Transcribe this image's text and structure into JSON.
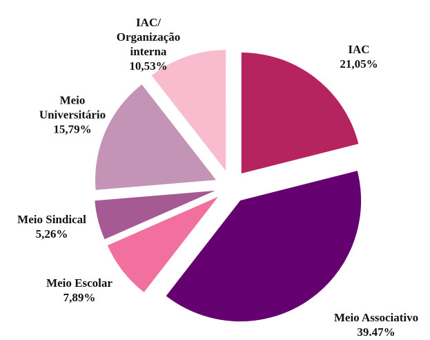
{
  "chart_data": {
    "type": "pie",
    "categories": [
      "IAC",
      "Meio Associativo",
      "Meio Escolar",
      "Meio Sindical",
      "Meio Universitário",
      "IAC/ Organização interna"
    ],
    "values": [
      21.05,
      39.47,
      7.89,
      5.26,
      15.79,
      10.53
    ],
    "value_labels": [
      "21,05%",
      "39.47%",
      "7,89%",
      "5,26%",
      "15,79%",
      "10,53%"
    ],
    "colors": [
      "#b5245e",
      "#640070",
      "#f2709e",
      "#a65a94",
      "#c394b5",
      "#f9bccf"
    ]
  }
}
